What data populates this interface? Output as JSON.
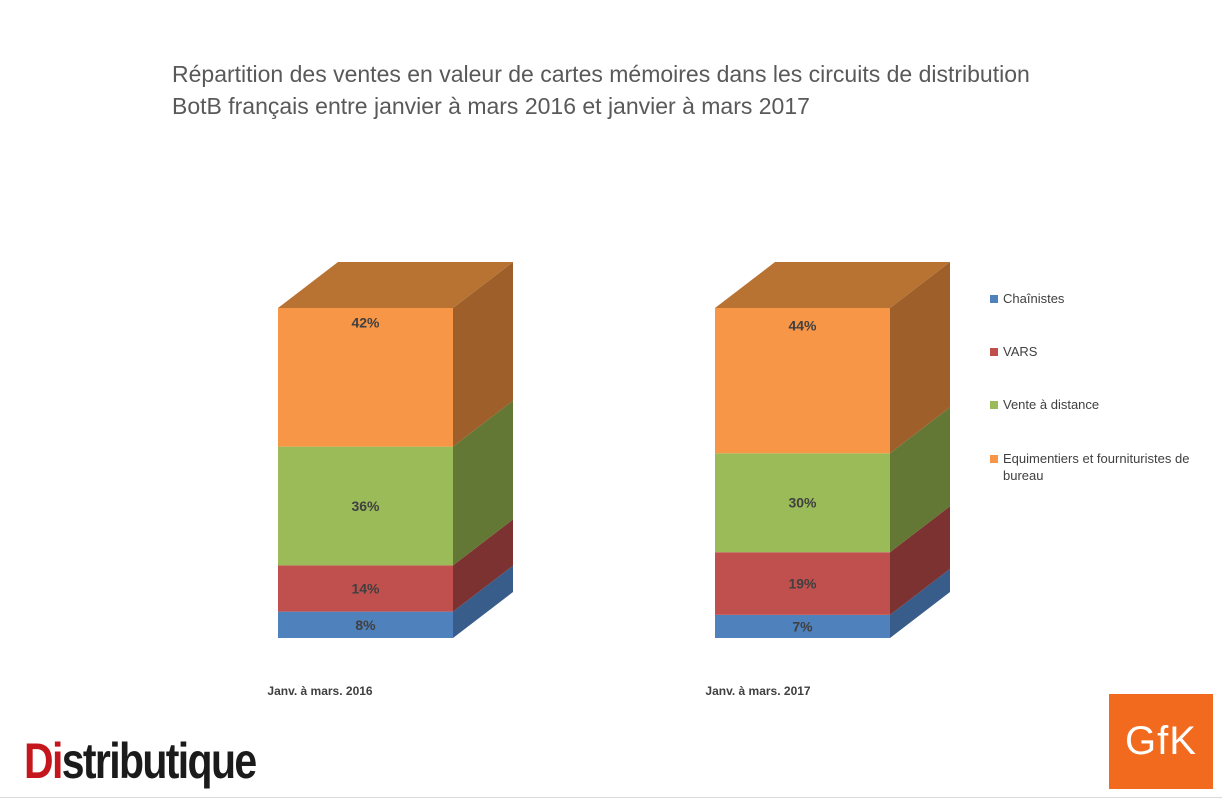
{
  "chart_data": {
    "type": "bar",
    "stacked": true,
    "style": "3d",
    "title": [
      "Répartition des ventes en valeur de cartes mémoires dans les circuits de distribution",
      "BotB français entre janvier à mars 2016 et janvier à mars 2017"
    ],
    "categories": [
      "Janv. à mars. 2016",
      "Janv. à mars. 2017"
    ],
    "series": [
      {
        "name": "Chaînistes",
        "values": [
          8,
          7
        ],
        "labels": [
          "8%",
          "7%"
        ],
        "color": "#4f81bd",
        "side": "#385d8a",
        "top": "#6a96cc"
      },
      {
        "name": "VARS",
        "values": [
          14,
          19
        ],
        "labels": [
          "14%",
          "19%"
        ],
        "color": "#c0504d",
        "side": "#7b3230",
        "top": "#d06a67"
      },
      {
        "name": "Vente à distance",
        "values": [
          36,
          30
        ],
        "labels": [
          "36%",
          "30%"
        ],
        "color": "#9bbb59",
        "side": "#637834",
        "top": "#b0cc78"
      },
      {
        "name": "Equimentiers et fournituristes de bureau",
        "values": [
          42,
          44
        ],
        "labels": [
          "42%",
          "44%"
        ],
        "color": "#f79646",
        "side": "#9e5f2b",
        "top": "#b87232"
      }
    ],
    "ylim": [
      0,
      100
    ],
    "legend": "right"
  },
  "branding": {
    "logo_left": {
      "prefix": "Di",
      "rest": "stributique"
    },
    "logo_right": "GfK"
  }
}
